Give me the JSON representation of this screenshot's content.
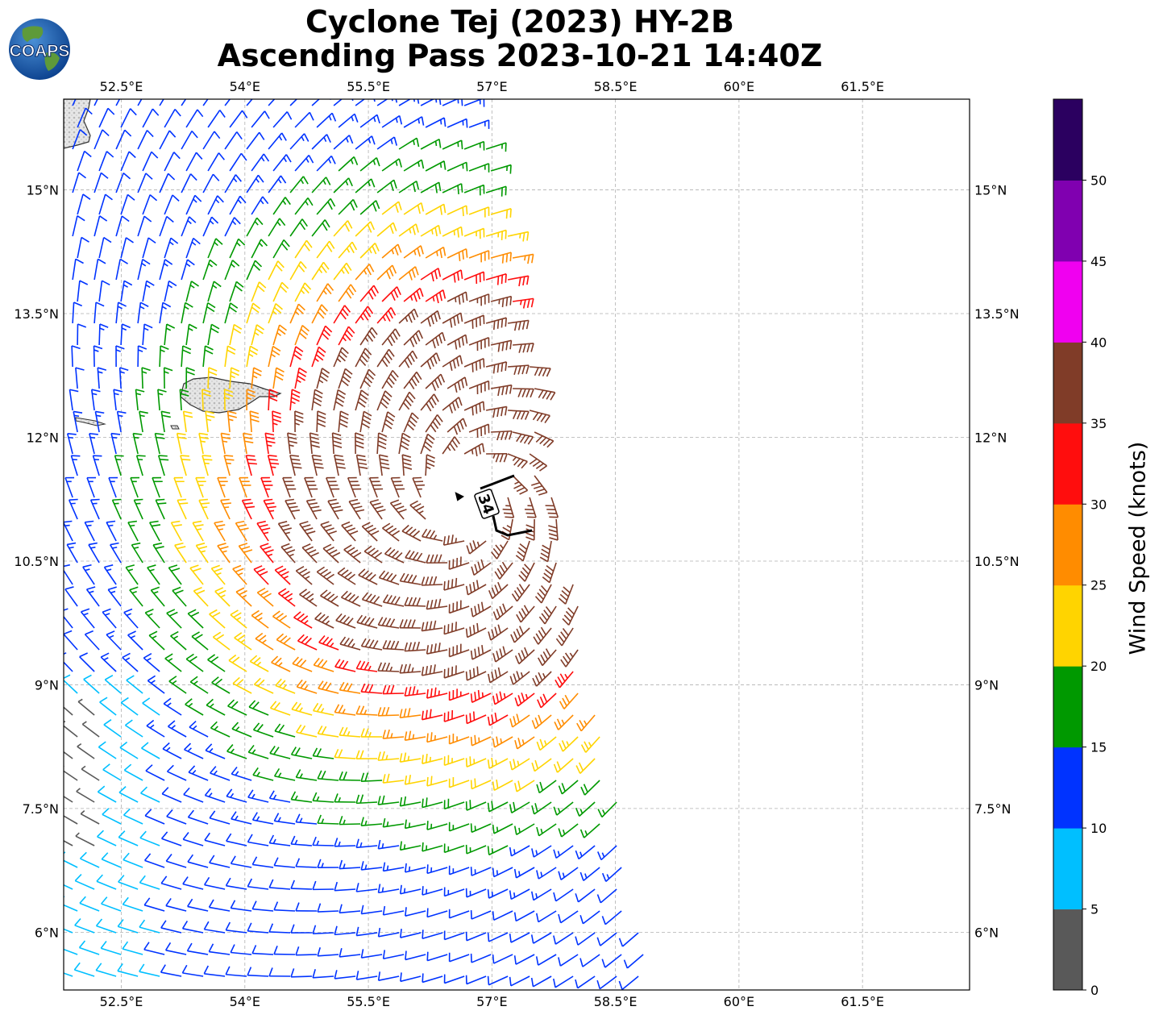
{
  "title": {
    "line1": "Cyclone Tej (2023) HY-2B",
    "line2": "Ascending Pass 2023-10-21 14:40Z"
  },
  "logo": {
    "text": "COAPS"
  },
  "map": {
    "lon_range": [
      51.8,
      62.8
    ],
    "lat_range": [
      5.3,
      16.1
    ],
    "lon_ticks": [
      52.5,
      54,
      55.5,
      57,
      58.5,
      60,
      61.5
    ],
    "lon_tick_labels": [
      "52.5°E",
      "54°E",
      "55.5°E",
      "57°E",
      "58.5°E",
      "60°E",
      "61.5°E"
    ],
    "lat_ticks": [
      15,
      13.5,
      12,
      10.5,
      9,
      7.5,
      6
    ],
    "lat_tick_labels": [
      "15°N",
      "13.5°N",
      "12°N",
      "10.5°N",
      "9°N",
      "7.5°N",
      "6°N"
    ],
    "cyclone_center": {
      "lon": 56.75,
      "lat": 11.3
    },
    "contour_label": "34"
  },
  "colorbar": {
    "label": "Wind Speed (knots)",
    "tick_labels": [
      "0",
      "5",
      "10",
      "15",
      "20",
      "25",
      "30",
      "35",
      "40",
      "45",
      "50"
    ],
    "ticks": [
      0,
      5,
      10,
      15,
      20,
      25,
      30,
      35,
      40,
      45,
      50
    ],
    "range": [
      0,
      55
    ],
    "colors": [
      "#595959",
      "#00bfff",
      "#0033ff",
      "#009900",
      "#ffd400",
      "#ff8c00",
      "#ff0d0d",
      "#803c28",
      "#f000f0",
      "#8000b0",
      "#2b0060"
    ]
  }
}
